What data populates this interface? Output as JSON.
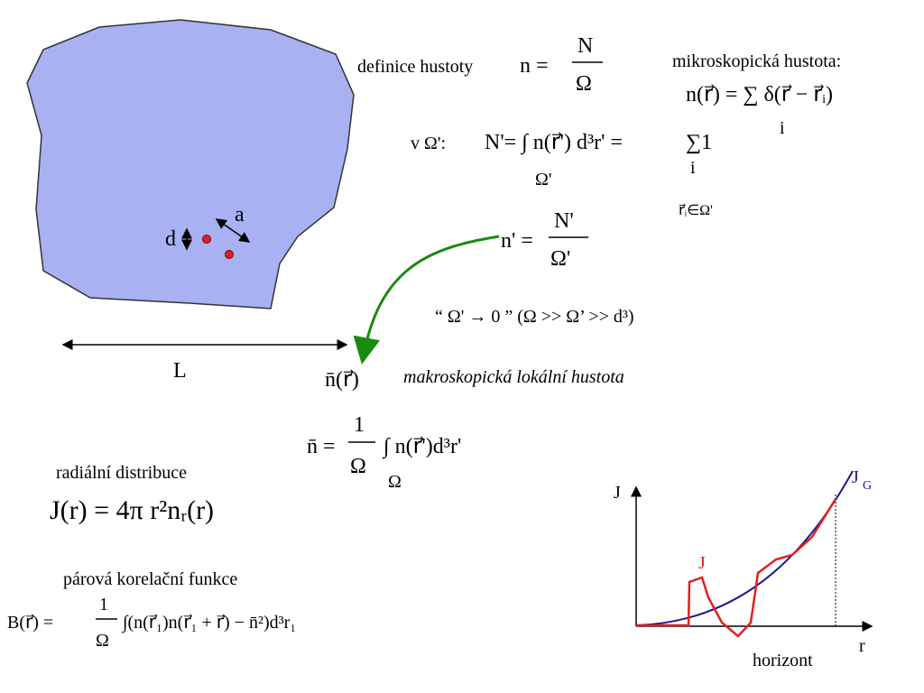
{
  "sketch": {
    "d": "d",
    "a": "a",
    "L": "L"
  },
  "definition": {
    "label": "definice hustoty",
    "lhs": "n =",
    "num": "N",
    "den": "Ω"
  },
  "microscopic": {
    "label": "mikroskopická hustota:",
    "formula": "n(r⃗) = ∑ δ(r⃗ − r⃗ᵢ)",
    "index": "i"
  },
  "subvolume": {
    "label": "v Ω':",
    "formula": "N'= ∫ n(r⃗') d³r' =",
    "integral_domain": "Ω'",
    "sum": "∑1",
    "sum_index": "i",
    "sum_condition": "r⃗ᵢ∈Ω'"
  },
  "local": {
    "lhs": "n' =",
    "num": "N'",
    "den": "Ω'"
  },
  "limit": "“ Ω' → 0 ”  (Ω >> Ω’ >> d³)",
  "macroscopic": {
    "symbol": "n̄(r⃗)",
    "label": "makroskopická lokální hustota"
  },
  "mean": {
    "lhs": "n̄ =",
    "num": "1",
    "den": "Ω",
    "integral": "∫ n(r⃗')d³r'",
    "domain": "Ω"
  },
  "radial": {
    "label": "radiální distribuce",
    "formula": "J(r) = 4π r²nᵣ(r)"
  },
  "pair": {
    "label": "párová korelační funkce",
    "lhs": "B(r⃗) =",
    "num": "1",
    "den": "Ω",
    "integral": "∫(n(r⃗₁)n(r⃗₁ + r⃗) − n̄²)d³r₁"
  },
  "graph": {
    "y_axis": "J",
    "ideal": "J",
    "ideal_sub": "G",
    "actual": "J",
    "x_axis": "r",
    "horizon": "horizont"
  }
}
